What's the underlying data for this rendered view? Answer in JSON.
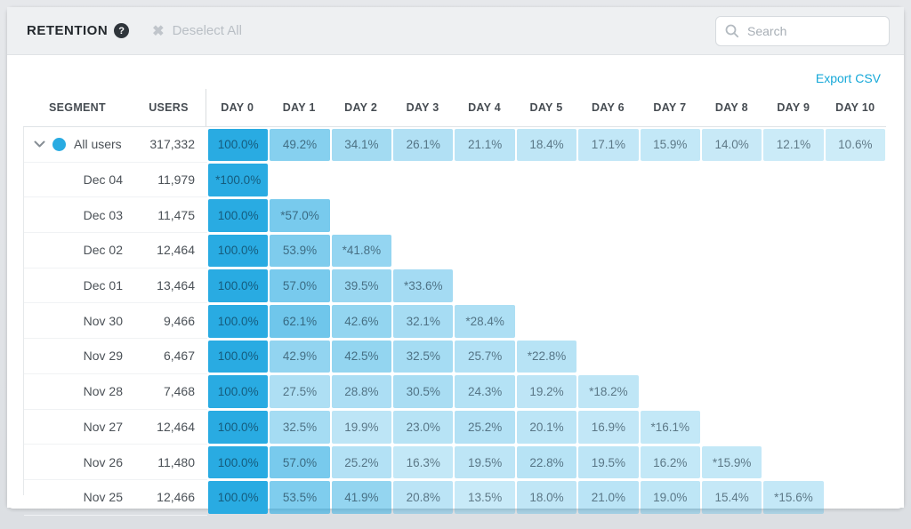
{
  "topbar": {
    "title": "RETENTION",
    "help_glyph": "?",
    "deselect_label": "Deselect All",
    "search_placeholder": "Search"
  },
  "table": {
    "export_label": "Export CSV",
    "segment_header": "SEGMENT",
    "users_header": "USERS",
    "day_headers": [
      "DAY 0",
      "DAY 1",
      "DAY 2",
      "DAY 3",
      "DAY 4",
      "DAY 5",
      "DAY 6",
      "DAY 7",
      "DAY 8",
      "DAY 9",
      "DAY 10"
    ],
    "rows": [
      {
        "segment": "All users",
        "users": "317,332",
        "expanded": true,
        "cells": [
          "100.0%",
          "49.2%",
          "34.1%",
          "26.1%",
          "21.1%",
          "18.4%",
          "17.1%",
          "15.9%",
          "14.0%",
          "12.1%",
          "10.6%"
        ]
      },
      {
        "segment": "Dec 04",
        "users": "11,979",
        "cells": [
          "*100.0%"
        ]
      },
      {
        "segment": "Dec 03",
        "users": "11,475",
        "cells": [
          "100.0%",
          "*57.0%"
        ]
      },
      {
        "segment": "Dec 02",
        "users": "12,464",
        "cells": [
          "100.0%",
          "53.9%",
          "*41.8%"
        ]
      },
      {
        "segment": "Dec 01",
        "users": "13,464",
        "cells": [
          "100.0%",
          "57.0%",
          "39.5%",
          "*33.6%"
        ]
      },
      {
        "segment": "Nov 30",
        "users": "9,466",
        "cells": [
          "100.0%",
          "62.1%",
          "42.6%",
          "32.1%",
          "*28.4%"
        ]
      },
      {
        "segment": "Nov 29",
        "users": "6,467",
        "cells": [
          "100.0%",
          "42.9%",
          "42.5%",
          "32.5%",
          "25.7%",
          "*22.8%"
        ]
      },
      {
        "segment": "Nov 28",
        "users": "7,468",
        "cells": [
          "100.0%",
          "27.5%",
          "28.8%",
          "30.5%",
          "24.3%",
          "19.2%",
          "*18.2%"
        ]
      },
      {
        "segment": "Nov 27",
        "users": "12,464",
        "cells": [
          "100.0%",
          "32.5%",
          "19.9%",
          "23.0%",
          "25.2%",
          "20.1%",
          "16.9%",
          "*16.1%"
        ]
      },
      {
        "segment": "Nov 26",
        "users": "11,480",
        "cells": [
          "100.0%",
          "57.0%",
          "25.2%",
          "16.3%",
          "19.5%",
          "22.8%",
          "19.5%",
          "16.2%",
          "*15.9%"
        ]
      },
      {
        "segment": "Nov 25",
        "users": "12,466",
        "cells": [
          "100.0%",
          "53.5%",
          "41.9%",
          "20.8%",
          "13.5%",
          "18.0%",
          "21.0%",
          "19.0%",
          "15.4%",
          "*15.6%"
        ]
      }
    ]
  },
  "colors": {
    "cell_base": "#29abe2",
    "accent_dot": "#29abe2",
    "export_link": "#16a8d8"
  }
}
